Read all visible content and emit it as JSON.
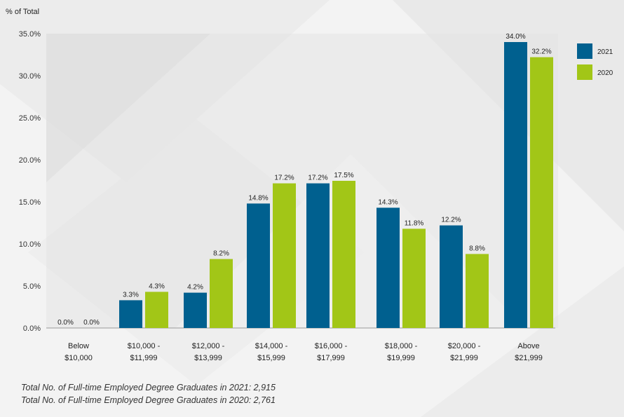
{
  "chart_data": {
    "type": "bar",
    "ylabel": "% of Total",
    "ylim": [
      0,
      35
    ],
    "yticks": [
      "0.0%",
      "5.0%",
      "10.0%",
      "15.0%",
      "20.0%",
      "25.0%",
      "30.0%",
      "35.0%"
    ],
    "categories": [
      [
        "Below",
        "$10,000"
      ],
      [
        "$10,000 -",
        "$11,999"
      ],
      [
        "$12,000 -",
        "$13,999"
      ],
      [
        "$14,000 -",
        "$15,999"
      ],
      [
        "$16,000 -",
        "$17,999"
      ],
      [
        "$18,000 -",
        "$19,999"
      ],
      [
        "$20,000 -",
        "$21,999"
      ],
      [
        "Above",
        "$21,999"
      ]
    ],
    "series": [
      {
        "name": "2021",
        "color": "#00608f",
        "values": [
          0.0,
          3.3,
          4.2,
          14.8,
          17.2,
          14.3,
          12.2,
          34.0
        ],
        "labels": [
          "0.0%",
          "3.3%",
          "4.2%",
          "14.8%",
          "17.2%",
          "14.3%",
          "12.2%",
          "34.0%"
        ]
      },
      {
        "name": "2020",
        "color": "#a2c617",
        "values": [
          0.0,
          4.3,
          8.2,
          17.2,
          17.5,
          11.8,
          8.8,
          32.2
        ],
        "labels": [
          "0.0%",
          "4.3%",
          "8.2%",
          "17.2%",
          "17.5%",
          "11.8%",
          "8.8%",
          "32.2%"
        ]
      }
    ],
    "legend_position": "top-right",
    "grid": false
  },
  "footnotes": [
    "Total No. of Full-time Employed Degree Graduates in 2021: 2,915",
    "Total No. of Full-time Employed Degree Graduates in 2020: 2,761"
  ]
}
